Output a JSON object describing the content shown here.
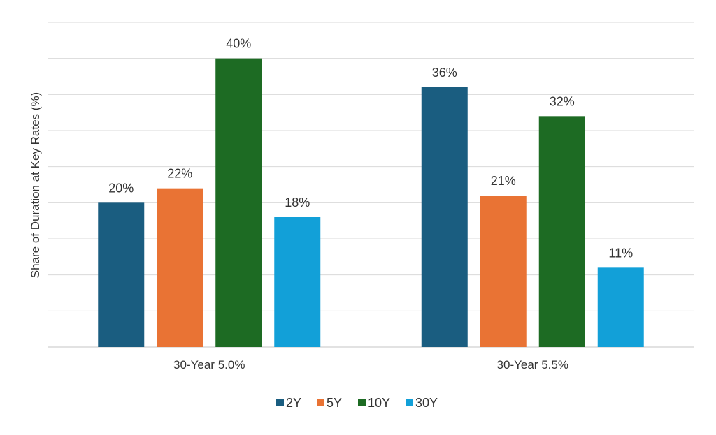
{
  "chart_data": {
    "type": "bar",
    "title": "",
    "xlabel": "",
    "ylabel": "Share of Duration at Key Rates (%)",
    "ylim": [
      0,
      45
    ],
    "grid": true,
    "ytick_step": 5,
    "legend_position": "bottom",
    "categories": [
      "30-Year 5.0%",
      "30-Year 5.5%"
    ],
    "series": [
      {
        "name": "2Y",
        "color": "#1a5d80",
        "values": [
          20,
          36
        ],
        "labels": [
          "20%",
          "36%"
        ]
      },
      {
        "name": "5Y",
        "color": "#e97334",
        "values": [
          22,
          21
        ],
        "labels": [
          "22%",
          "21%"
        ]
      },
      {
        "name": "10Y",
        "color": "#1d6b23",
        "values": [
          40,
          32
        ],
        "labels": [
          "40%",
          "32%"
        ]
      },
      {
        "name": "30Y",
        "color": "#12a0d8",
        "values": [
          18,
          11
        ],
        "labels": [
          "18%",
          "11%"
        ]
      }
    ]
  }
}
